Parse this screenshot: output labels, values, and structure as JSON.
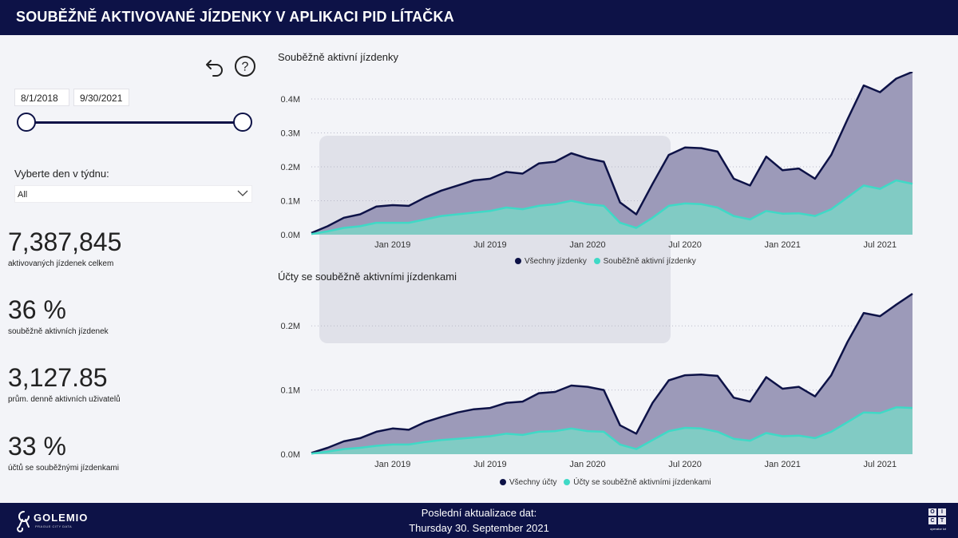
{
  "header": {
    "title": "SOUBĚŽNĚ AKTIVOVANÉ JÍZDENKY V APLIKACI PID LÍTAČKA"
  },
  "filters": {
    "date_from": "8/1/2018",
    "date_to": "9/30/2021",
    "weekday_label": "Vyberte den v týdnu:",
    "weekday_value": "All",
    "icons": [
      "undo-icon",
      "help-icon",
      "chevron-down-icon"
    ]
  },
  "kpis": [
    {
      "value": "7,387,845",
      "label": "aktivovaných jízdenek celkem"
    },
    {
      "value": "36 %",
      "label": "souběžně aktivních jízdenek"
    },
    {
      "value": "3,127.85",
      "label": "prům. denně aktivních uživatelů"
    },
    {
      "value": "33 %",
      "label": "účtů se souběžnými jízdenkami"
    }
  ],
  "colors": {
    "navy": "#0d1247",
    "area_dark": "#9b99b8",
    "teal": "#3fd9c6",
    "teal_area": "#7fcbc2"
  },
  "chart_data": [
    {
      "type": "area",
      "title": "Souběžně aktivní jízdenky",
      "x_ticks": [
        "Jan 2019",
        "Jul 2019",
        "Jan 2020",
        "Jul 2020",
        "Jan 2021",
        "Jul 2021"
      ],
      "y_ticks": [
        "0.0M",
        "0.1M",
        "0.2M",
        "0.3M",
        "0.4M"
      ],
      "ylim": [
        0,
        0.48
      ],
      "x": [
        "2018-08",
        "2018-09",
        "2018-10",
        "2018-11",
        "2018-12",
        "2019-01",
        "2019-02",
        "2019-03",
        "2019-04",
        "2019-05",
        "2019-06",
        "2019-07",
        "2019-08",
        "2019-09",
        "2019-10",
        "2019-11",
        "2019-12",
        "2020-01",
        "2020-02",
        "2020-03",
        "2020-04",
        "2020-05",
        "2020-06",
        "2020-07",
        "2020-08",
        "2020-09",
        "2020-10",
        "2020-11",
        "2020-12",
        "2021-01",
        "2021-02",
        "2021-03",
        "2021-04",
        "2021-05",
        "2021-06",
        "2021-07",
        "2021-08",
        "2021-09"
      ],
      "series": [
        {
          "name": "Všechny jízdenky",
          "color": "#0d1247",
          "values": [
            0.005,
            0.025,
            0.05,
            0.06,
            0.083,
            0.087,
            0.085,
            0.11,
            0.13,
            0.145,
            0.16,
            0.165,
            0.185,
            0.18,
            0.21,
            0.215,
            0.24,
            0.225,
            0.215,
            0.095,
            0.06,
            0.15,
            0.235,
            0.257,
            0.255,
            0.245,
            0.165,
            0.145,
            0.23,
            0.19,
            0.195,
            0.165,
            0.235,
            0.34,
            0.44,
            0.42,
            0.46,
            0.48
          ]
        },
        {
          "name": "Souběžně aktivní jízdenky",
          "color": "#3fd9c6",
          "values": [
            0.002,
            0.01,
            0.02,
            0.025,
            0.035,
            0.035,
            0.035,
            0.045,
            0.055,
            0.06,
            0.065,
            0.07,
            0.08,
            0.075,
            0.085,
            0.09,
            0.1,
            0.09,
            0.085,
            0.035,
            0.02,
            0.05,
            0.085,
            0.092,
            0.09,
            0.08,
            0.055,
            0.045,
            0.07,
            0.062,
            0.063,
            0.055,
            0.075,
            0.11,
            0.145,
            0.135,
            0.16,
            0.15
          ]
        }
      ],
      "legend": [
        "Všechny jízdenky",
        "Souběžně aktivní jízdenky"
      ]
    },
    {
      "type": "area",
      "title": "Účty se souběžně aktivními jízdenkami",
      "x_ticks": [
        "Jan 2019",
        "Jul 2019",
        "Jan 2020",
        "Jul 2020",
        "Jan 2021",
        "Jul 2021"
      ],
      "y_ticks": [
        "0.0M",
        "0.1M",
        "0.2M"
      ],
      "ylim": [
        0,
        0.25
      ],
      "x": [
        "2018-08",
        "2018-09",
        "2018-10",
        "2018-11",
        "2018-12",
        "2019-01",
        "2019-02",
        "2019-03",
        "2019-04",
        "2019-05",
        "2019-06",
        "2019-07",
        "2019-08",
        "2019-09",
        "2019-10",
        "2019-11",
        "2019-12",
        "2020-01",
        "2020-02",
        "2020-03",
        "2020-04",
        "2020-05",
        "2020-06",
        "2020-07",
        "2020-08",
        "2020-09",
        "2020-10",
        "2020-11",
        "2020-12",
        "2021-01",
        "2021-02",
        "2021-03",
        "2021-04",
        "2021-05",
        "2021-06",
        "2021-07",
        "2021-08",
        "2021-09"
      ],
      "series": [
        {
          "name": "Všechny účty",
          "color": "#0d1247",
          "values": [
            0.002,
            0.01,
            0.02,
            0.025,
            0.035,
            0.04,
            0.038,
            0.05,
            0.058,
            0.065,
            0.07,
            0.072,
            0.08,
            0.082,
            0.095,
            0.097,
            0.107,
            0.105,
            0.1,
            0.045,
            0.032,
            0.08,
            0.115,
            0.123,
            0.124,
            0.122,
            0.088,
            0.082,
            0.12,
            0.102,
            0.105,
            0.09,
            0.123,
            0.175,
            0.22,
            0.215,
            0.233,
            0.25
          ]
        },
        {
          "name": "Účty se souběžně aktivními jízdenkami",
          "color": "#3fd9c6",
          "values": [
            0.001,
            0.004,
            0.008,
            0.01,
            0.013,
            0.015,
            0.015,
            0.019,
            0.022,
            0.024,
            0.026,
            0.028,
            0.032,
            0.03,
            0.035,
            0.036,
            0.04,
            0.036,
            0.035,
            0.015,
            0.008,
            0.022,
            0.036,
            0.041,
            0.04,
            0.035,
            0.024,
            0.021,
            0.033,
            0.028,
            0.029,
            0.025,
            0.035,
            0.05,
            0.065,
            0.064,
            0.073,
            0.072
          ]
        }
      ],
      "legend": [
        "Všechny účty",
        "Účty se souběžně aktivními jízdenkami"
      ]
    }
  ],
  "footer": {
    "update_label": "Poslední aktualizace dat:",
    "update_date": "Thursday 30. September 2021",
    "logo_text": "GOLEMIO",
    "logo_sub": "PRAGUE CITY DATA",
    "oict_cells": [
      "O",
      "I",
      "C",
      "T"
    ],
    "oict_sub": "operator ict"
  }
}
